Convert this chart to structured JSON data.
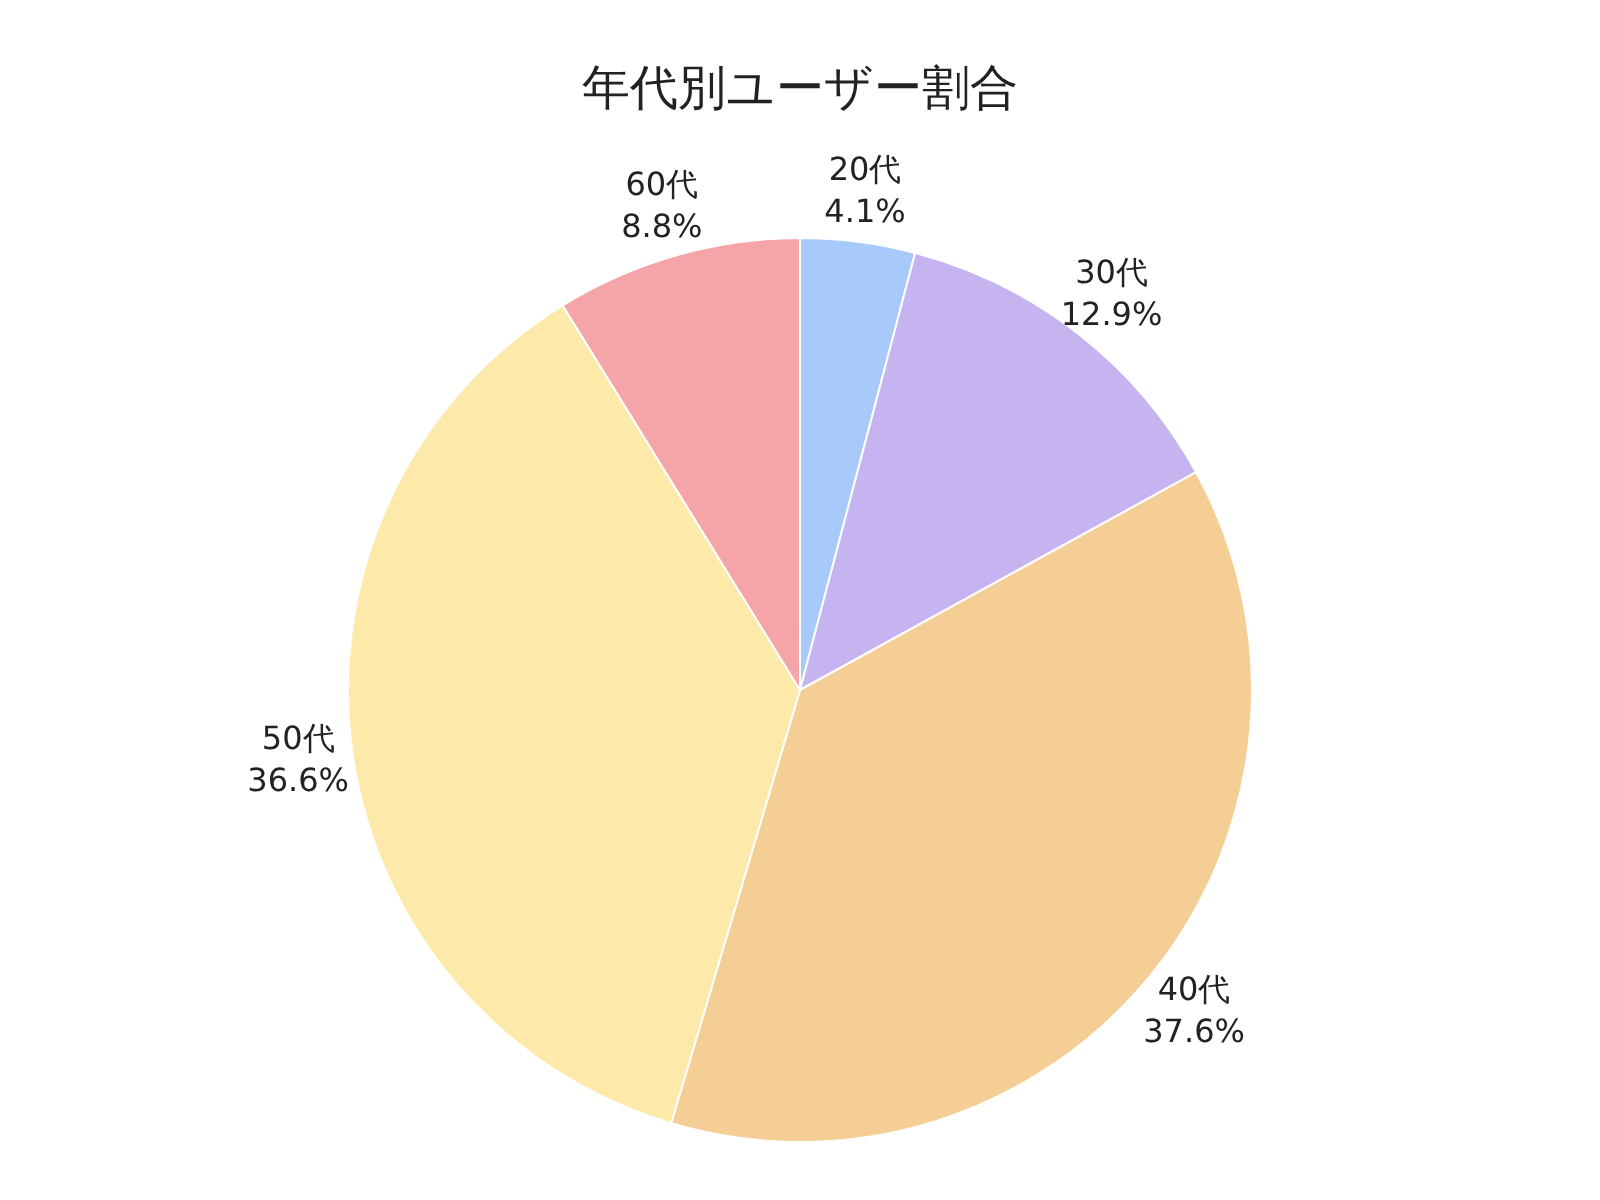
{
  "chart_data": {
    "type": "pie",
    "title": "年代別ユーザー割合",
    "categories": [
      "20代",
      "30代",
      "40代",
      "50代",
      "60代"
    ],
    "values": [
      4.1,
      12.9,
      37.6,
      36.6,
      8.8
    ],
    "value_labels": [
      "4.1%",
      "12.9%",
      "37.6%",
      "36.6%",
      "8.8%"
    ],
    "colors": [
      "#a8cafa",
      "#c6b4f0",
      "#f5ce96",
      "#fdeaaa",
      "#f5a4a8"
    ],
    "legend": false
  }
}
